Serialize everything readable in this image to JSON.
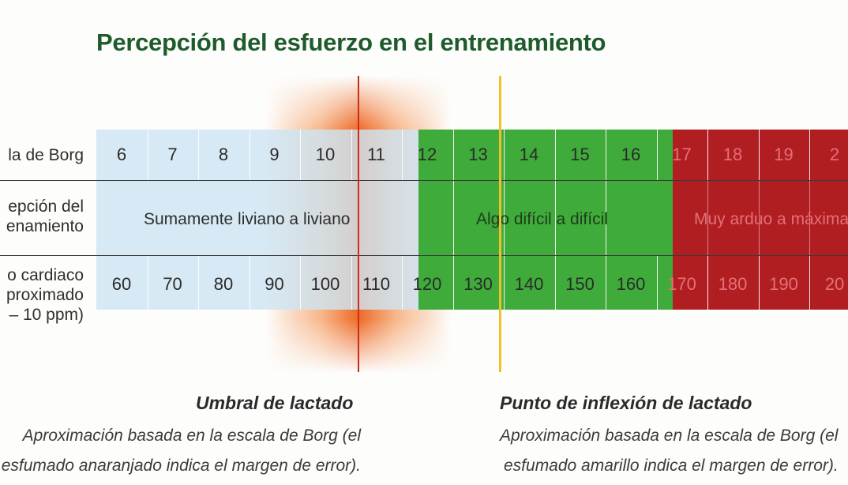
{
  "title": "Percepción del esfuerzo en el entrenamiento",
  "row_labels": {
    "borg": "la de Borg",
    "perception_line1": "epción del",
    "perception_line2": "enamiento",
    "hr_line1": "o cardiaco",
    "hr_line2": "proximado",
    "hr_line3": "– 10 ppm)"
  },
  "borg_values": [
    "6",
    "7",
    "8",
    "9",
    "10",
    "11",
    "12",
    "13",
    "14",
    "15",
    "16",
    "17",
    "18",
    "19",
    "2"
  ],
  "heart_rate_values": [
    "60",
    "70",
    "80",
    "90",
    "100",
    "110",
    "120",
    "130",
    "140",
    "150",
    "160",
    "170",
    "180",
    "190",
    "20"
  ],
  "zones": {
    "light": "Sumamente liviano a liviano",
    "moderate": "Algo difícil a difícil",
    "hard": "Muy arduo a máxima"
  },
  "notes": {
    "lactate_threshold": {
      "title": "Umbral de lactado",
      "line1": "Aproximación basada en la escala de Borg (el",
      "line2": "esfumado anaranjado indica el margen de error)."
    },
    "inflection_point": {
      "title": "Punto de inflexión de lactado",
      "line1": "Aproximación basada en la escala de Borg (el",
      "line2": "esfumado amarillo indica el margen de error)."
    }
  },
  "colors": {
    "title": "#1e5b2b",
    "light_zone": "#cee4f2",
    "moderate_zone": "#3fab3a",
    "hard_zone": "#b01e22",
    "orange_glow": "#ec621c",
    "threshold_line": "#c8301c",
    "inflection_line": "#f0c22a"
  }
}
